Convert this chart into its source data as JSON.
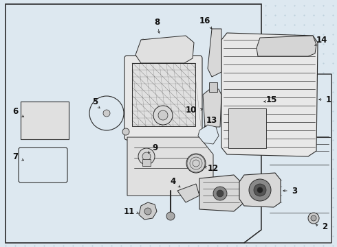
{
  "bg_color": "#dde8f0",
  "box_bg": "#dde8f0",
  "line_color": "#2a2a2a",
  "label_color": "#111111",
  "fig_width": 4.9,
  "fig_height": 3.6,
  "dpi": 100
}
